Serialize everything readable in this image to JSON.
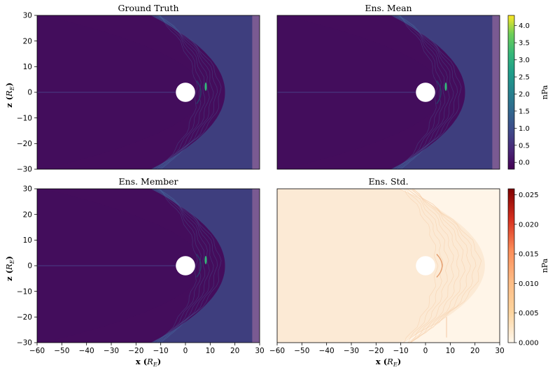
{
  "figure": {
    "x_axis_title": "x (R_E)",
    "y_axis_title": "z (R_E)",
    "colors": {
      "field_background": "#440d5c",
      "sheath": "#3c4f8a",
      "pileup": "#35b779",
      "sponge_layer": "#7a5a92",
      "std_background": "#fff5e8",
      "std_texture": "#fae0c4"
    }
  },
  "chart_data": [
    {
      "type": "heatmap",
      "panel": "top-left",
      "title": "Ground Truth",
      "xlim": [
        -60,
        30
      ],
      "ylim": [
        -30,
        30
      ],
      "xticks": [],
      "yticks": [
        -30,
        -20,
        -10,
        0,
        10,
        20,
        30
      ],
      "colormap": "viridis",
      "shared_colorbar": "top"
    },
    {
      "type": "heatmap",
      "panel": "top-right",
      "title": "Ens. Mean",
      "xlim": [
        -60,
        30
      ],
      "ylim": [
        -30,
        30
      ],
      "xticks": [],
      "yticks": [],
      "colormap": "viridis",
      "shared_colorbar": "top"
    },
    {
      "type": "heatmap",
      "panel": "bottom-left",
      "title": "Ens. Member",
      "xlim": [
        -60,
        30
      ],
      "ylim": [
        -30,
        30
      ],
      "xticks": [
        -60,
        -50,
        -40,
        -30,
        -20,
        -10,
        0,
        10,
        20,
        30
      ],
      "yticks": [
        -30,
        -20,
        -10,
        0,
        10,
        20,
        30
      ],
      "colormap": "viridis",
      "shared_colorbar": "top"
    },
    {
      "type": "heatmap",
      "panel": "bottom-right",
      "title": "Ens. Std.",
      "xlim": [
        -60,
        30
      ],
      "ylim": [
        -30,
        30
      ],
      "xticks": [
        -60,
        -50,
        -40,
        -30,
        -20,
        -10,
        0,
        10,
        20,
        30
      ],
      "yticks": [],
      "colormap": "OrRd",
      "shared_colorbar": "bottom"
    }
  ],
  "colorbars": [
    {
      "position": "top",
      "label": "nPa",
      "range": [
        -0.2,
        4.3
      ],
      "ticks": [
        0.0,
        0.5,
        1.0,
        1.5,
        2.0,
        2.5,
        3.0,
        3.5,
        4.0
      ],
      "tick_labels": [
        "0.0",
        "0.5",
        "1.0",
        "1.5",
        "2.0",
        "2.5",
        "3.0",
        "3.5",
        "4.0"
      ],
      "colormap": "viridis"
    },
    {
      "position": "bottom",
      "label": "nPa",
      "range": [
        0.0,
        0.026
      ],
      "ticks": [
        0.0,
        0.005,
        0.01,
        0.015,
        0.02,
        0.025
      ],
      "tick_labels": [
        "0.000",
        "0.005",
        "0.010",
        "0.015",
        "0.020",
        "0.025"
      ],
      "colormap": "OrRd"
    }
  ]
}
